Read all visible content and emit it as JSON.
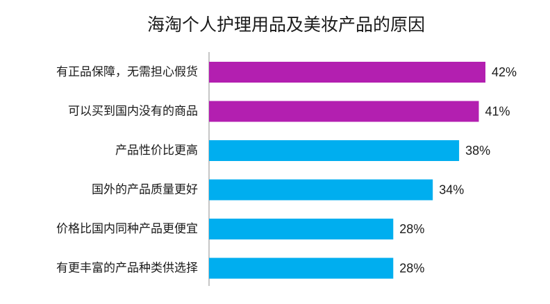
{
  "chart_data": {
    "type": "bar",
    "orientation": "horizontal",
    "title": "海淘个人护理用品及美妆产品的原因",
    "categories": [
      "有正品保障，无需担心假货",
      "可以买到国内没有的商品",
      "产品性价比更高",
      "国外的产品质量更好",
      "价格比国内同种产品更便宜",
      "有更丰富的产品种类供选择"
    ],
    "values": [
      42,
      41,
      38,
      34,
      28,
      28
    ],
    "value_labels": [
      "42%",
      "41%",
      "38%",
      "34%",
      "28%",
      "28%"
    ],
    "bar_colors": [
      "#b31fb0",
      "#b31fb0",
      "#00aeef",
      "#00aeef",
      "#00aeef",
      "#00aeef"
    ],
    "xlim": [
      0,
      45
    ],
    "grid": false,
    "legend": false
  }
}
